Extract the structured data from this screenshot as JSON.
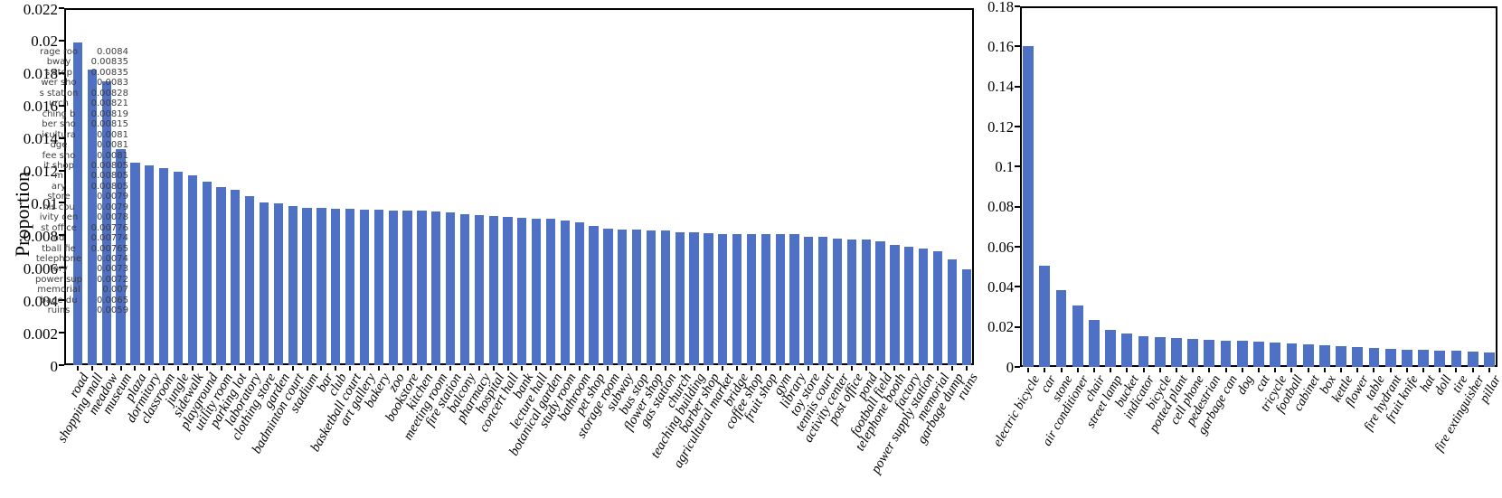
{
  "figure": {
    "background": "#ffffff",
    "bar_color": "#4e71c6",
    "axis_color": "#000000",
    "annotation_text_color": "#3d3d3d"
  },
  "chart_data": [
    {
      "type": "bar",
      "title": "",
      "xlabel": "",
      "ylabel": "Proportion",
      "ylim": [
        0,
        0.022
      ],
      "grid": false,
      "legend": "none",
      "yticks": [
        0,
        0.002,
        0.004,
        0.006,
        0.008,
        0.01,
        0.012,
        0.014,
        0.016,
        0.018,
        0.02,
        0.022
      ],
      "ytick_labels": [
        "0",
        "0.002",
        "0.004",
        "0.006",
        "0.008",
        "0.01",
        "0.012",
        "0.014",
        "0.016",
        "0.018",
        "0.02",
        "0.022"
      ],
      "categories": [
        "road",
        "shopping mall",
        "meadow",
        "museum",
        "plaza",
        "dormitory",
        "classroom",
        "jungle",
        "sidewalk",
        "playground",
        "utility room",
        "parking lot",
        "laboratory",
        "clothing store",
        "garden",
        "badminton court",
        "stadium",
        "bar",
        "club",
        "basketball court",
        "art gallery",
        "bakery",
        "zoo",
        "bookstore",
        "kitchen",
        "meeting room",
        "fire station",
        "balcony",
        "pharmacy",
        "hospital",
        "concert hall",
        "bank",
        "lecture hall",
        "botanical garden",
        "study room",
        "bathroom",
        "pet shop",
        "storage room",
        "subway",
        "bus stop",
        "flower shop",
        "gas station",
        "church",
        "teaching building",
        "barber shop",
        "agricultural market",
        "bridge",
        "coffee shop",
        "fruit shop",
        "gym",
        "library",
        "toy store",
        "tennis court",
        "activity center",
        "post office",
        "pond",
        "football field",
        "telephone booth",
        "factory",
        "power supply station",
        "memorial",
        "garbage dump",
        "ruins"
      ],
      "values": [
        0.0199,
        0.0182,
        0.0175,
        0.0133,
        0.01245,
        0.0123,
        0.01215,
        0.0119,
        0.0117,
        0.0113,
        0.011,
        0.0108,
        0.0104,
        0.01,
        0.00995,
        0.0098,
        0.0097,
        0.00968,
        0.00965,
        0.00962,
        0.0096,
        0.00958,
        0.00955,
        0.00952,
        0.0095,
        0.00945,
        0.0094,
        0.0093,
        0.00925,
        0.0092,
        0.00915,
        0.0091,
        0.00905,
        0.009,
        0.0089,
        0.0088,
        0.0086,
        0.0084,
        0.00835,
        0.00835,
        0.0083,
        0.00828,
        0.00821,
        0.00819,
        0.00815,
        0.0081,
        0.0081,
        0.0081,
        0.00805,
        0.00805,
        0.00805,
        0.0079,
        0.0079,
        0.0078,
        0.00776,
        0.00774,
        0.00765,
        0.0074,
        0.0073,
        0.0072,
        0.007,
        0.0065,
        0.0059
      ],
      "overlay_annotation": {
        "description": "clipped category/value list overlapping y-axis",
        "items": [
          {
            "label": "rage roo",
            "value": "0.0084"
          },
          {
            "label": "bway",
            "value": "0.00835"
          },
          {
            "label": "s stop",
            "value": "0.00835"
          },
          {
            "label": "wer sho",
            "value": "0.0083"
          },
          {
            "label": "s station",
            "value": "0.00828"
          },
          {
            "label": "urch",
            "value": "0.00821"
          },
          {
            "label": "ching b",
            "value": "0.00819"
          },
          {
            "label": "ber sho",
            "value": "0.00815"
          },
          {
            "label": "icultura",
            "value": "0.0081"
          },
          {
            "label": "dge",
            "value": "0.0081"
          },
          {
            "label": "fee sho",
            "value": "0.0081"
          },
          {
            "label": "it shop",
            "value": "0.00805"
          },
          {
            "label": "m",
            "value": "0.00805"
          },
          {
            "label": "ary",
            "value": "0.00805"
          },
          {
            "label": "store",
            "value": "0.0079"
          },
          {
            "label": "nis cou",
            "value": "0.0079"
          },
          {
            "label": "ivity cen",
            "value": "0.0078"
          },
          {
            "label": "st office",
            "value": "0.00776"
          },
          {
            "label": "nd",
            "value": "0.00774"
          },
          {
            "label": "tball fie",
            "value": "0.00765"
          },
          {
            "label": "telephone",
            "value": "0.0074"
          },
          {
            "label": "tory",
            "value": "0.0073"
          },
          {
            "label": "power sup",
            "value": "0.0072"
          },
          {
            "label": "memorial",
            "value": "0.007"
          },
          {
            "label": "bage du",
            "value": "0.0065"
          },
          {
            "label": "ruins",
            "value": "0.0059"
          }
        ]
      }
    },
    {
      "type": "bar",
      "title": "",
      "xlabel": "",
      "ylabel": "",
      "ylim": [
        0,
        0.18
      ],
      "grid": false,
      "legend": "none",
      "yticks": [
        0,
        0.02,
        0.04,
        0.06,
        0.08,
        0.1,
        0.12,
        0.14,
        0.16,
        0.18
      ],
      "ytick_labels": [
        "0",
        "0.02",
        "0.04",
        "0.06",
        "0.08",
        "0.1",
        "0.12",
        "0.14",
        "0.16",
        "0.18"
      ],
      "categories": [
        "electric bicycle",
        "car",
        "stone",
        "air conditioner",
        "chair",
        "street lamp",
        "bucket",
        "indicator",
        "bicycle",
        "potted plant",
        "cell phone",
        "pedestrian",
        "garbage can",
        "dog",
        "cat",
        "tricycle",
        "football",
        "cabinet",
        "box",
        "kettle",
        "flower",
        "table",
        "fire hydrant",
        "fruit knife",
        "hat",
        "doll",
        "tire",
        "fire extinguisher",
        "pillar"
      ],
      "values": [
        0.16,
        0.0505,
        0.0385,
        0.0305,
        0.0235,
        0.0185,
        0.0168,
        0.0155,
        0.0149,
        0.0143,
        0.0139,
        0.0135,
        0.0132,
        0.013,
        0.0127,
        0.0122,
        0.0117,
        0.0113,
        0.011,
        0.0105,
        0.0098,
        0.0094,
        0.009,
        0.0087,
        0.0085,
        0.0082,
        0.0079,
        0.0077,
        0.0073
      ]
    }
  ]
}
